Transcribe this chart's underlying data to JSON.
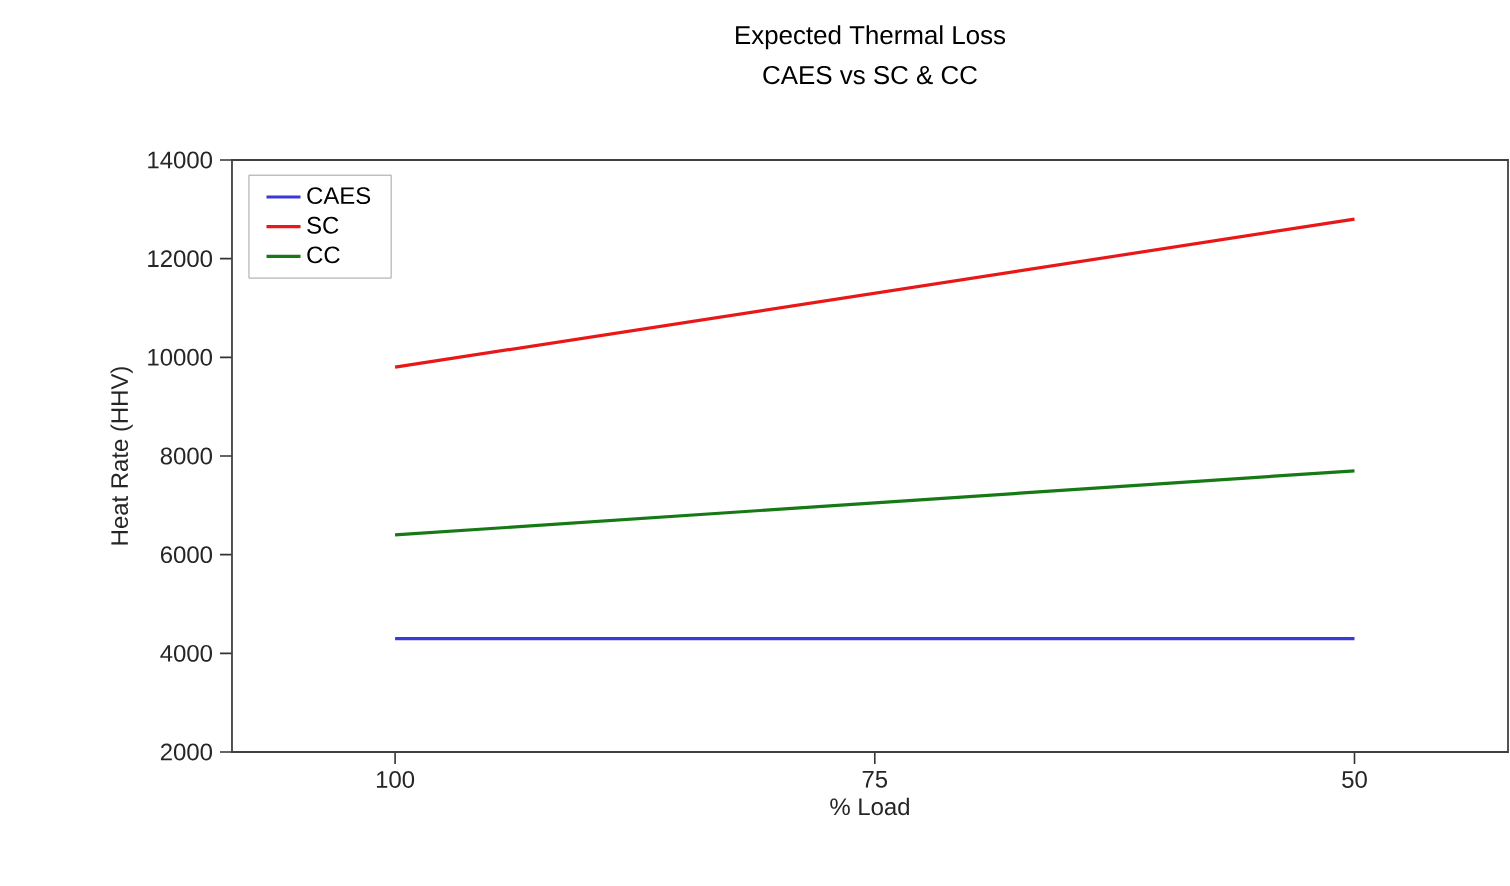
{
  "chart_data": {
    "type": "line",
    "title": "Expected Thermal Loss",
    "subtitle": "CAES vs SC & CC",
    "xlabel": "% Load",
    "ylabel": "Heat Rate (HHV)",
    "x": [
      100,
      50
    ],
    "series": [
      {
        "name": "CAES",
        "color": "#3a3ad8",
        "values": [
          4300,
          4300
        ]
      },
      {
        "name": "SC",
        "color": "#e81818",
        "values": [
          9800,
          12800
        ]
      },
      {
        "name": "CC",
        "color": "#157a15",
        "values": [
          6400,
          7700
        ]
      }
    ],
    "xlim": [
      108.5,
      42
    ],
    "xticks": [
      100,
      75,
      50
    ],
    "ylim": [
      2000,
      14000
    ],
    "yticks": [
      2000,
      4000,
      6000,
      8000,
      10000,
      12000,
      14000
    ],
    "legend": "top left",
    "grid": false,
    "marker": "none",
    "line_style": "solid"
  }
}
